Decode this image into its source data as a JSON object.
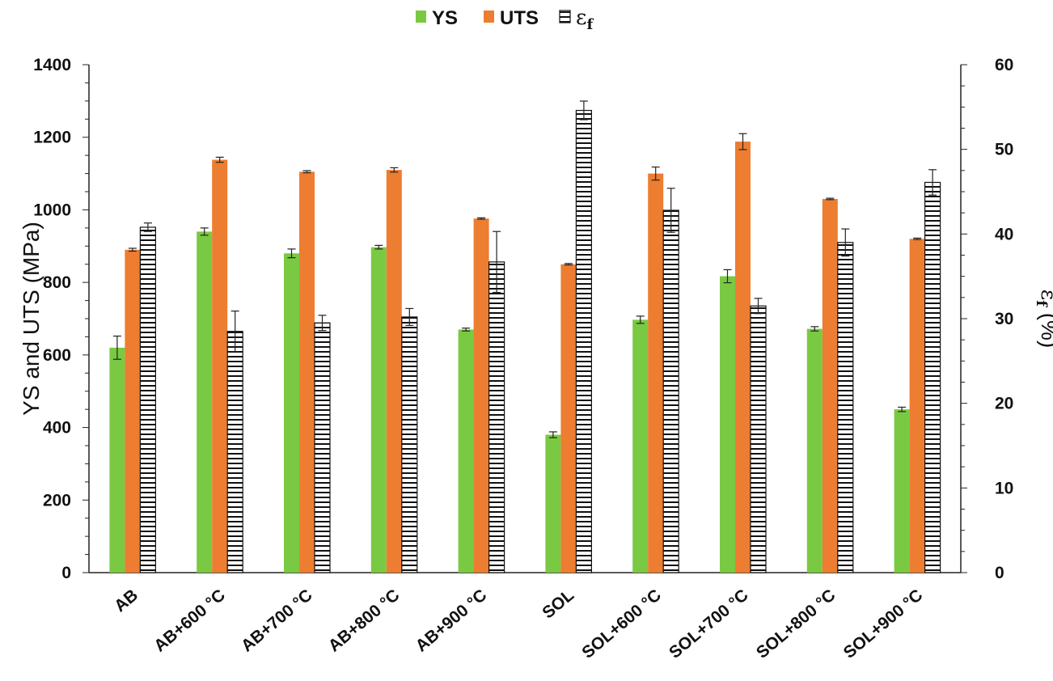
{
  "chart_data": {
    "type": "bar",
    "categories": [
      "AB",
      "AB+600 °C",
      "AB+700 °C",
      "AB+800 °C",
      "AB+900 °C",
      "SOL",
      "SOL+600 °C",
      "SOL+700 °C",
      "SOL+800 °C",
      "SOL+900 °C"
    ],
    "series": [
      {
        "name": "YS",
        "axis": "left",
        "color": "#7ac943",
        "pattern": "solid",
        "values": [
          620,
          940,
          880,
          897,
          670,
          380,
          697,
          817,
          672,
          450
        ],
        "errors": [
          32,
          10,
          12,
          5,
          4,
          8,
          10,
          18,
          6,
          6
        ]
      },
      {
        "name": "UTS",
        "axis": "left",
        "color": "#ed7d31",
        "pattern": "solid",
        "values": [
          890,
          1138,
          1105,
          1110,
          976,
          850,
          1100,
          1188,
          1030,
          920
        ],
        "errors": [
          4,
          7,
          3,
          6,
          2,
          2,
          18,
          22,
          2,
          2
        ]
      },
      {
        "name": "ε",
        "subscript": "f",
        "axis": "right",
        "color": "#ffffff",
        "pattern": "horizontal-stripes",
        "values": [
          40.8,
          28.5,
          29.5,
          30.2,
          36.7,
          54.6,
          42.8,
          31.5,
          39.0,
          46.1
        ],
        "errors": [
          0.5,
          2.4,
          0.9,
          1.0,
          3.6,
          1.1,
          2.6,
          0.9,
          1.6,
          1.5
        ]
      }
    ],
    "left_axis": {
      "label": "YS and UTS (MPa)",
      "ylim": [
        0,
        1400
      ],
      "ticks": [
        "0",
        "200",
        "400",
        "600",
        "800",
        "1000",
        "1200",
        "1400"
      ]
    },
    "right_axis": {
      "label": "ε",
      "label_subscript": "f",
      "label_suffix": " (%)",
      "ylim": [
        0,
        60
      ],
      "ticks": [
        "0",
        "10",
        "20",
        "30",
        "40",
        "50",
        "60"
      ]
    },
    "legend_position": "top-center",
    "grid": false
  }
}
